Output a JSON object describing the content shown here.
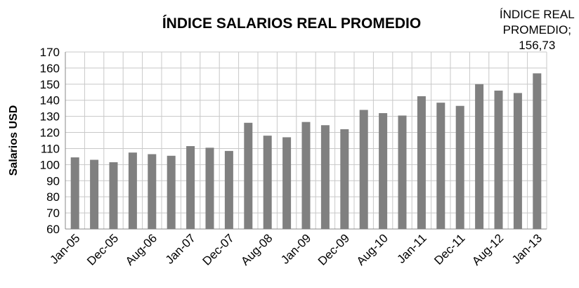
{
  "chart_data": {
    "type": "bar",
    "title": "ÍNDICE SALARIOS REAL PROMEDIO",
    "y_label": "Salarios USD",
    "categories": [
      "Jan-05",
      null,
      "Dec-05",
      null,
      "Aug-06",
      null,
      "Jan-07",
      null,
      "Dec-07",
      null,
      "Aug-08",
      null,
      "Jan-09",
      null,
      "Dec-09",
      null,
      "Aug-10",
      null,
      "Jan-11",
      null,
      "Dec-11",
      null,
      "Aug-12",
      null,
      "Jan-13"
    ],
    "values": [
      104.5,
      103,
      101.5,
      107.5,
      106.5,
      105.5,
      111.5,
      110.5,
      108.5,
      126,
      118,
      117,
      126.5,
      124.5,
      122,
      134,
      132,
      130.5,
      142.5,
      138.5,
      136.5,
      150,
      146,
      144.5,
      156.73
    ],
    "value_labels": [
      null,
      null,
      null,
      null,
      null,
      null,
      null,
      null,
      null,
      null,
      null,
      null,
      null,
      null,
      null,
      null,
      null,
      null,
      null,
      null,
      null,
      null,
      null,
      null,
      "ÍNDICE REAL PROMEDIO; 156,73"
    ],
    "color": "#808080",
    "ylim": [
      60,
      170
    ],
    "yticks": [
      60,
      70,
      80,
      90,
      100,
      110,
      120,
      130,
      140,
      150,
      160,
      170
    ],
    "grid": true
  }
}
